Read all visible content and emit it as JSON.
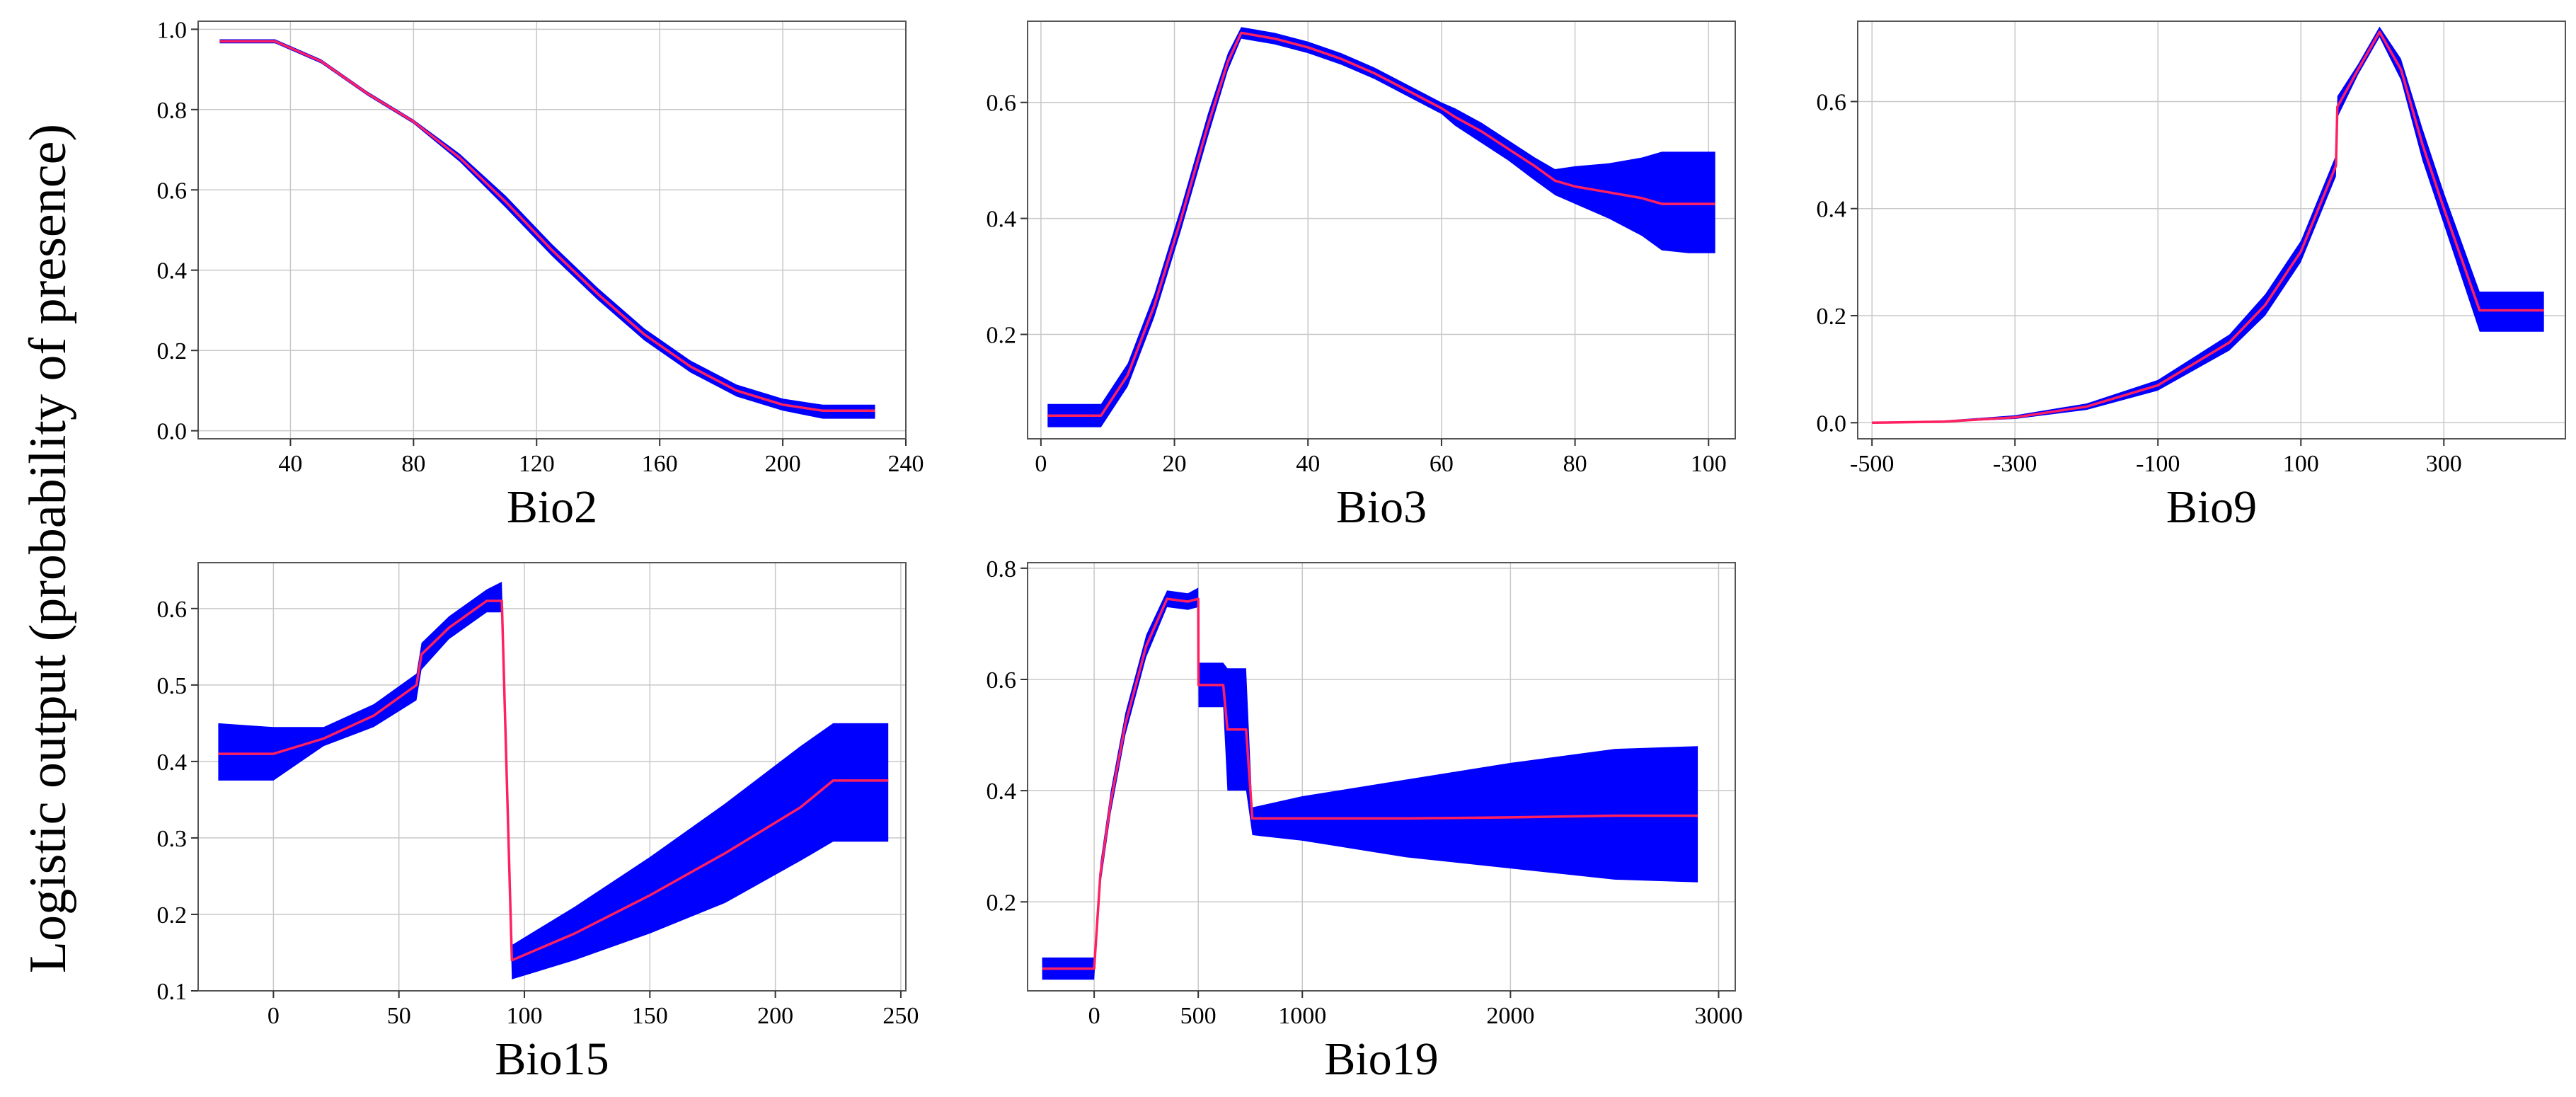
{
  "figure": {
    "ylabel": "Logistic output (probability of presence)"
  },
  "colors": {
    "band": "#0000ff",
    "mean": "#ff2060",
    "grid": "#c8c8c8"
  },
  "chart_data": [
    {
      "id": "bio2",
      "type": "area",
      "title": "",
      "xlabel": "Bio2",
      "ylabel": "Logistic output (probability of presence)",
      "xlim": [
        10,
        240
      ],
      "ylim": [
        -0.02,
        1.02
      ],
      "grid": true,
      "xticks": [
        40,
        80,
        120,
        160,
        200,
        240
      ],
      "yticks": [
        0.0,
        0.2,
        0.4,
        0.6,
        0.8,
        1.0
      ],
      "ytick_labels": [
        "0.0",
        "0.2",
        "0.4",
        "0.6",
        "0.8",
        "1.0"
      ],
      "series": [
        {
          "name": "mean response",
          "x": [
            17,
            35,
            50,
            65,
            80,
            95,
            110,
            125,
            140,
            155,
            170,
            185,
            200,
            213,
            230
          ],
          "y": [
            0.97,
            0.97,
            0.92,
            0.84,
            0.77,
            0.68,
            0.57,
            0.45,
            0.34,
            0.24,
            0.16,
            0.1,
            0.065,
            0.05,
            0.05
          ],
          "lower": [
            0.965,
            0.965,
            0.915,
            0.835,
            0.765,
            0.67,
            0.555,
            0.435,
            0.325,
            0.225,
            0.145,
            0.085,
            0.05,
            0.03,
            0.03
          ],
          "upper": [
            0.975,
            0.975,
            0.925,
            0.845,
            0.775,
            0.69,
            0.585,
            0.465,
            0.355,
            0.255,
            0.175,
            0.115,
            0.08,
            0.065,
            0.065
          ]
        }
      ]
    },
    {
      "id": "bio3",
      "type": "area",
      "title": "",
      "xlabel": "Bio3",
      "ylabel": "Logistic output (probability of presence)",
      "xlim": [
        -2,
        104
      ],
      "ylim": [
        0.02,
        0.74
      ],
      "grid": true,
      "xticks": [
        0,
        20,
        40,
        60,
        80,
        100
      ],
      "yticks": [
        0.2,
        0.4,
        0.6
      ],
      "ytick_labels": [
        "0.2",
        "0.4",
        "0.6"
      ],
      "series": [
        {
          "name": "mean response",
          "x": [
            1,
            9,
            13,
            17,
            21,
            25,
            28,
            30,
            35,
            40,
            45,
            50,
            55,
            60,
            62,
            66,
            70,
            74,
            77,
            80,
            85,
            90,
            93,
            97,
            101
          ],
          "y": [
            0.06,
            0.06,
            0.13,
            0.25,
            0.4,
            0.56,
            0.67,
            0.72,
            0.71,
            0.695,
            0.675,
            0.65,
            0.62,
            0.59,
            0.575,
            0.55,
            0.52,
            0.49,
            0.465,
            0.455,
            0.445,
            0.435,
            0.425,
            0.425,
            0.425
          ],
          "lower": [
            0.04,
            0.04,
            0.11,
            0.23,
            0.38,
            0.54,
            0.655,
            0.71,
            0.7,
            0.685,
            0.665,
            0.64,
            0.61,
            0.58,
            0.56,
            0.53,
            0.5,
            0.465,
            0.44,
            0.425,
            0.4,
            0.37,
            0.345,
            0.34,
            0.34
          ],
          "upper": [
            0.08,
            0.08,
            0.15,
            0.27,
            0.42,
            0.58,
            0.685,
            0.73,
            0.72,
            0.705,
            0.685,
            0.66,
            0.63,
            0.6,
            0.59,
            0.565,
            0.535,
            0.505,
            0.485,
            0.49,
            0.495,
            0.505,
            0.515,
            0.515,
            0.515
          ]
        }
      ]
    },
    {
      "id": "bio9",
      "type": "area",
      "title": "",
      "xlabel": "Bio9",
      "ylabel": "Logistic output (probability of presence)",
      "xlim": [
        -520,
        470
      ],
      "ylim": [
        -0.03,
        0.75
      ],
      "grid": true,
      "xticks": [
        -500,
        -300,
        -100,
        100,
        300
      ],
      "yticks": [
        0.0,
        0.2,
        0.4,
        0.6
      ],
      "ytick_labels": [
        "0.0",
        "0.2",
        "0.4",
        "0.6"
      ],
      "series": [
        {
          "name": "mean response",
          "x": [
            -500,
            -400,
            -300,
            -200,
            -100,
            0,
            50,
            100,
            149,
            151,
            180,
            210,
            240,
            270,
            300,
            350,
            440
          ],
          "y": [
            0.0,
            0.002,
            0.01,
            0.03,
            0.07,
            0.15,
            0.22,
            0.32,
            0.48,
            0.59,
            0.66,
            0.73,
            0.66,
            0.52,
            0.4,
            0.21,
            0.21
          ],
          "lower": [
            0.0,
            0.001,
            0.007,
            0.024,
            0.06,
            0.135,
            0.2,
            0.3,
            0.46,
            0.57,
            0.65,
            0.72,
            0.64,
            0.49,
            0.37,
            0.17,
            0.17
          ],
          "upper": [
            0.001,
            0.004,
            0.014,
            0.036,
            0.08,
            0.165,
            0.24,
            0.34,
            0.5,
            0.61,
            0.67,
            0.74,
            0.68,
            0.55,
            0.43,
            0.245,
            0.245
          ]
        }
      ]
    },
    {
      "id": "bio15",
      "type": "area",
      "title": "",
      "xlabel": "Bio15",
      "ylabel": "Logistic output (probability of presence)",
      "xlim": [
        -30,
        252
      ],
      "ylim": [
        0.1,
        0.66
      ],
      "grid": true,
      "xticks": [
        0,
        50,
        100,
        150,
        200,
        250
      ],
      "yticks": [
        0.1,
        0.2,
        0.3,
        0.4,
        0.5,
        0.6
      ],
      "ytick_labels": [
        "0.1",
        "0.2",
        "0.3",
        "0.4",
        "0.5",
        "0.6"
      ],
      "series": [
        {
          "name": "mean response",
          "x": [
            -22,
            0,
            20,
            40,
            57,
            59,
            70,
            85,
            91,
            95,
            120,
            150,
            180,
            210,
            223,
            245
          ],
          "y": [
            0.41,
            0.41,
            0.43,
            0.46,
            0.5,
            0.54,
            0.575,
            0.61,
            0.61,
            0.14,
            0.175,
            0.225,
            0.28,
            0.34,
            0.375,
            0.375
          ],
          "lower": [
            0.375,
            0.375,
            0.42,
            0.445,
            0.48,
            0.52,
            0.56,
            0.595,
            0.595,
            0.115,
            0.14,
            0.175,
            0.215,
            0.27,
            0.295,
            0.295
          ],
          "upper": [
            0.45,
            0.445,
            0.445,
            0.475,
            0.515,
            0.555,
            0.59,
            0.625,
            0.635,
            0.16,
            0.21,
            0.275,
            0.345,
            0.42,
            0.45,
            0.45
          ]
        }
      ]
    },
    {
      "id": "bio19",
      "type": "area",
      "title": "",
      "xlabel": "Bio19",
      "ylabel": "Logistic output (probability of presence)",
      "xlim": [
        -320,
        3080
      ],
      "ylim": [
        0.04,
        0.81
      ],
      "grid": true,
      "xticks": [
        0,
        500,
        1000,
        2000,
        3000
      ],
      "yticks": [
        0.2,
        0.4,
        0.6,
        0.8
      ],
      "ytick_labels": [
        "0.2",
        "0.4",
        "0.6",
        "0.8"
      ],
      "series": [
        {
          "name": "mean response",
          "x": [
            -250,
            0,
            30,
            80,
            150,
            250,
            350,
            450,
            500,
            501,
            620,
            640,
            680,
            730,
            760,
            1000,
            1500,
            2000,
            2500,
            2900
          ],
          "y": [
            0.08,
            0.08,
            0.25,
            0.38,
            0.52,
            0.66,
            0.745,
            0.74,
            0.745,
            0.59,
            0.59,
            0.51,
            0.51,
            0.51,
            0.35,
            0.35,
            0.35,
            0.352,
            0.355,
            0.355
          ],
          "lower": [
            0.06,
            0.06,
            0.23,
            0.36,
            0.5,
            0.64,
            0.73,
            0.725,
            0.73,
            0.55,
            0.55,
            0.4,
            0.4,
            0.4,
            0.32,
            0.31,
            0.28,
            0.26,
            0.24,
            0.235
          ],
          "upper": [
            0.1,
            0.1,
            0.27,
            0.4,
            0.54,
            0.68,
            0.76,
            0.755,
            0.765,
            0.63,
            0.63,
            0.62,
            0.62,
            0.62,
            0.37,
            0.39,
            0.42,
            0.45,
            0.475,
            0.48
          ]
        }
      ]
    }
  ]
}
